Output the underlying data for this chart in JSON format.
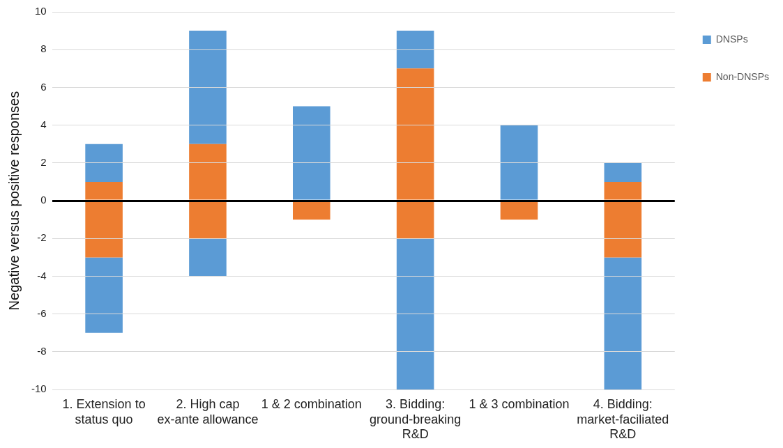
{
  "chart_data": {
    "type": "bar",
    "stacked": true,
    "ylabel": "Negative versus positive responses",
    "categories": [
      "1. Extension to status quo",
      "2. High cap ex-ante allowance",
      "1 & 2 combination",
      "3. Bidding: ground-breaking R&D",
      "1 & 3 combination",
      "4. Bidding: market-faciliated R&D"
    ],
    "series": [
      {
        "name": "Non-DNSPs",
        "color": "#ed7d31",
        "values": [
          1,
          3,
          0,
          7,
          0,
          1
        ]
      },
      {
        "color": "#ed7d31",
        "values": [
          -3,
          -2,
          -1,
          -2,
          -1,
          -3
        ]
      },
      {
        "name": "DNSPs",
        "color": "#5b9bd5",
        "values": [
          2,
          6,
          5,
          2,
          4,
          1
        ]
      },
      {
        "color": "#5b9bd5",
        "values": [
          -4,
          -2,
          0,
          -8,
          0,
          -7
        ]
      }
    ],
    "ylim": [
      -10,
      10
    ],
    "yticks": [
      -10,
      -8,
      -6,
      -4,
      -2,
      0,
      2,
      4,
      6,
      8,
      10
    ],
    "grid": "y",
    "legend": "top right"
  }
}
